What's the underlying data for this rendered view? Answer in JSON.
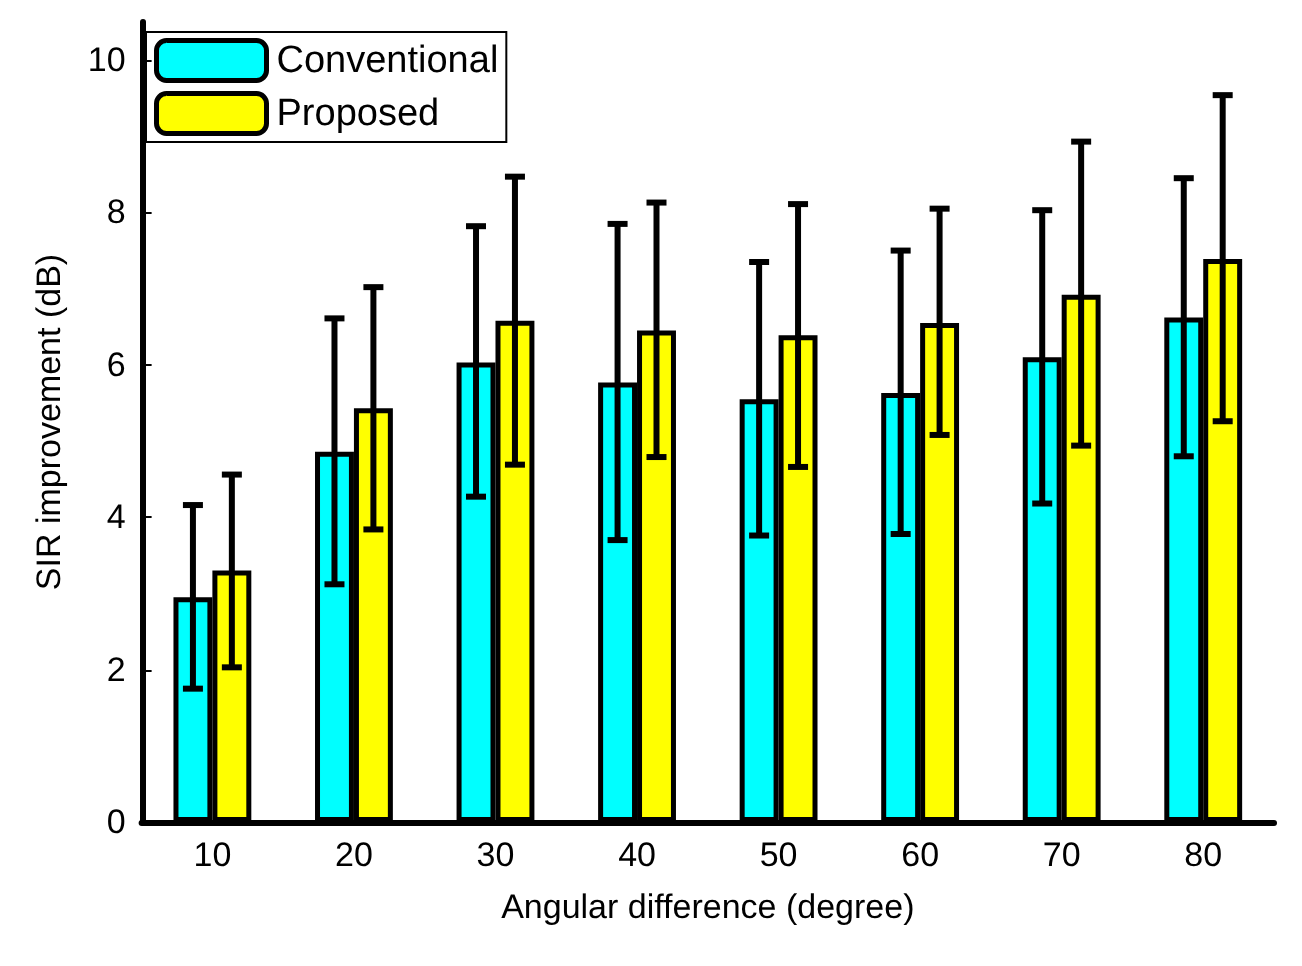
{
  "chart_data": {
    "type": "bar",
    "xlabel": "Angular difference (degree)",
    "ylabel": "SIR improvement (dB)",
    "categories": [
      "10",
      "20",
      "30",
      "40",
      "50",
      "60",
      "70",
      "80"
    ],
    "series": [
      {
        "name": "Conventional",
        "color": "#00ffff",
        "values": [
          2.95,
          4.86,
          6.03,
          5.77,
          5.55,
          5.63,
          6.1,
          6.62
        ],
        "errors": [
          [
            1.75,
            4.16
          ],
          [
            3.12,
            6.61
          ],
          [
            4.27,
            7.82
          ],
          [
            3.7,
            7.85
          ],
          [
            3.76,
            7.35
          ],
          [
            3.78,
            7.5
          ],
          [
            4.18,
            8.03
          ],
          [
            4.8,
            8.45
          ]
        ]
      },
      {
        "name": "Proposed",
        "color": "#ffff00",
        "values": [
          3.3,
          5.43,
          6.58,
          6.45,
          6.39,
          6.55,
          6.92,
          7.39
        ],
        "errors": [
          [
            2.03,
            4.56
          ],
          [
            3.84,
            7.02
          ],
          [
            4.69,
            8.47
          ],
          [
            4.79,
            8.13
          ],
          [
            4.66,
            8.11
          ],
          [
            5.08,
            8.05
          ],
          [
            4.94,
            8.93
          ],
          [
            5.26,
            9.54
          ]
        ]
      }
    ],
    "ylim": [
      0,
      10.5
    ],
    "yticks": [
      0,
      2,
      4,
      6,
      8,
      10
    ],
    "grid": false,
    "legend": "top left"
  }
}
